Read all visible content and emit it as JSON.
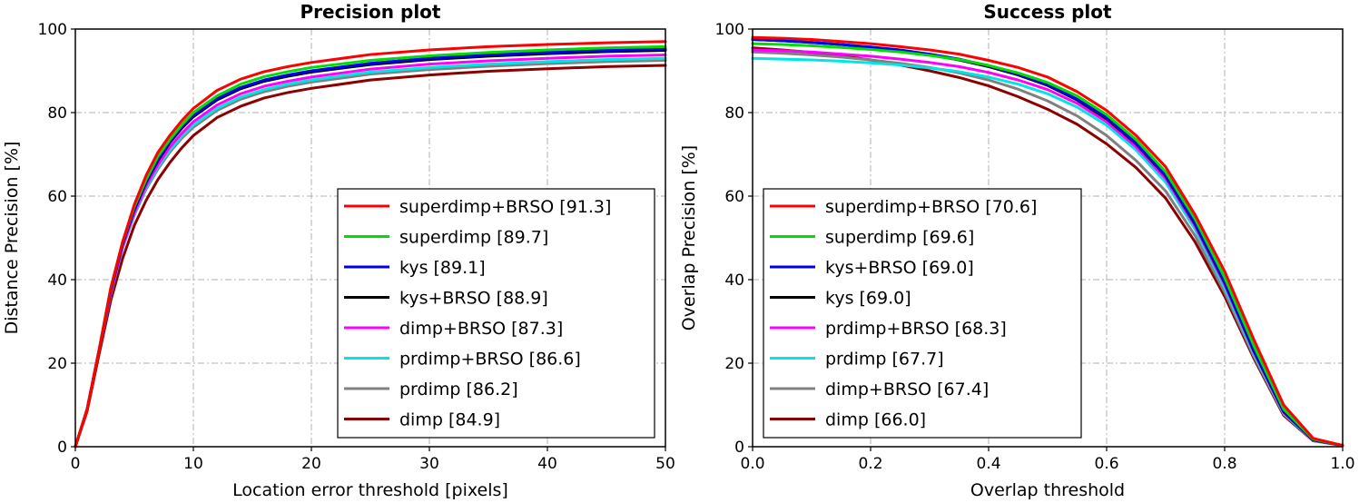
{
  "chart_data": [
    {
      "type": "line",
      "title": "Precision plot",
      "xlabel": "Location error threshold [pixels]",
      "ylabel": "Distance Precision [%]",
      "xlim": [
        0,
        50
      ],
      "ylim": [
        0,
        100
      ],
      "xticks": [
        0,
        10,
        20,
        30,
        40,
        50
      ],
      "xtick_labels": [
        "0",
        "10",
        "20",
        "30",
        "40",
        "50"
      ],
      "yticks": [
        0,
        20,
        40,
        60,
        80,
        100
      ],
      "ytick_labels": [
        "0",
        "20",
        "40",
        "60",
        "80",
        "100"
      ],
      "grid": true,
      "legend_position": "lower-right",
      "x": [
        0,
        1,
        2,
        3,
        4,
        5,
        6,
        7,
        8,
        9,
        10,
        12,
        14,
        16,
        18,
        20,
        25,
        30,
        35,
        40,
        45,
        50
      ],
      "series": [
        {
          "name": "superdimp+BRSO [91.3]",
          "color": "#ff0000",
          "values": [
            0,
            9,
            23,
            38,
            49,
            58,
            65,
            70.5,
            74.5,
            78,
            81,
            85.3,
            88,
            89.8,
            91,
            92,
            93.9,
            95,
            95.8,
            96.3,
            96.7,
            97
          ]
        },
        {
          "name": "superdimp [89.7]",
          "color": "#00dd00",
          "values": [
            0,
            9,
            23,
            38,
            49,
            57.5,
            64,
            69.5,
            73.5,
            77,
            80,
            84,
            86.8,
            88.6,
            89.8,
            90.8,
            92.5,
            93.6,
            94.4,
            95,
            95.5,
            95.8
          ]
        },
        {
          "name": "kys [89.1]",
          "color": "#0000ee",
          "values": [
            0,
            9,
            23,
            37.5,
            48.5,
            57,
            63.5,
            68.8,
            73,
            76.5,
            79.3,
            83.3,
            86,
            87.8,
            89,
            90,
            91.8,
            93,
            93.8,
            94.4,
            94.9,
            95.2
          ]
        },
        {
          "name": "kys+BRSO [88.9]",
          "color": "#000000",
          "values": [
            0,
            9,
            23,
            37.5,
            48.5,
            56.8,
            63.3,
            68.5,
            72.8,
            76.2,
            79,
            83,
            85.7,
            87.5,
            88.7,
            89.7,
            91.5,
            92.7,
            93.5,
            94.1,
            94.6,
            94.9
          ]
        },
        {
          "name": "dimp+BRSO [87.3]",
          "color": "#ff00ff",
          "values": [
            0,
            9,
            23,
            37,
            48,
            56,
            62.5,
            67.5,
            71.7,
            75,
            77.8,
            81.8,
            84.5,
            86.3,
            87.5,
            88.5,
            90.4,
            91.6,
            92.4,
            93,
            93.5,
            93.8
          ]
        },
        {
          "name": "prdimp+BRSO [86.6]",
          "color": "#00e5e5",
          "values": [
            0,
            9,
            23,
            37,
            47.8,
            55.8,
            62,
            67,
            71,
            74.3,
            77,
            81,
            83.7,
            85.5,
            86.8,
            87.8,
            89.7,
            90.8,
            91.6,
            92.2,
            92.7,
            93
          ]
        },
        {
          "name": "prdimp [86.2]",
          "color": "#808080",
          "values": [
            0,
            9,
            23,
            36.5,
            47.5,
            55.5,
            61.7,
            66.5,
            70.5,
            73.8,
            76.5,
            80.5,
            83.2,
            85,
            86.3,
            87.3,
            89.2,
            90.3,
            91.1,
            91.7,
            92.2,
            92.5
          ]
        },
        {
          "name": "dimp [84.9]",
          "color": "#8b0000",
          "values": [
            0,
            8.5,
            22,
            35,
            45,
            53,
            59,
            64,
            68,
            71.5,
            74.5,
            78.8,
            81.5,
            83.5,
            84.8,
            85.8,
            87.8,
            89,
            89.9,
            90.5,
            91,
            91.3
          ]
        }
      ]
    },
    {
      "type": "line",
      "title": "Success plot",
      "xlabel": "Overlap threshold",
      "ylabel": "Overlap Precision [%]",
      "xlim": [
        0,
        1
      ],
      "ylim": [
        0,
        100
      ],
      "xticks": [
        0,
        0.2,
        0.4,
        0.6,
        0.8,
        1.0
      ],
      "xtick_labels": [
        "0.0",
        "0.2",
        "0.4",
        "0.6",
        "0.8",
        "1.0"
      ],
      "yticks": [
        0,
        20,
        40,
        60,
        80,
        100
      ],
      "ytick_labels": [
        "0",
        "20",
        "40",
        "60",
        "80",
        "100"
      ],
      "grid": true,
      "legend_position": "lower-left",
      "x": [
        0,
        0.05,
        0.1,
        0.15,
        0.2,
        0.25,
        0.3,
        0.35,
        0.4,
        0.45,
        0.5,
        0.55,
        0.6,
        0.65,
        0.7,
        0.75,
        0.8,
        0.85,
        0.9,
        0.95,
        1.0
      ],
      "series": [
        {
          "name": "superdimp+BRSO [70.6]",
          "color": "#ff0000",
          "values": [
            98,
            97.8,
            97.5,
            97,
            96.5,
            95.8,
            95,
            94,
            92.5,
            90.8,
            88.5,
            85,
            80.5,
            74.5,
            67,
            55.5,
            42,
            25.5,
            10,
            2,
            0.3
          ]
        },
        {
          "name": "superdimp [69.6]",
          "color": "#00dd00",
          "values": [
            96.5,
            96.3,
            96,
            95.6,
            95.1,
            94.5,
            93.7,
            92.7,
            91.3,
            89.5,
            87.2,
            84,
            79.5,
            73.5,
            65.8,
            54.5,
            40.5,
            24,
            9,
            1.8,
            0.3
          ]
        },
        {
          "name": "kys+BRSO [69.0]",
          "color": "#0000ee",
          "values": [
            97.5,
            97.2,
            96.8,
            96.3,
            95.7,
            95,
            94,
            92.8,
            91.2,
            89.2,
            86.7,
            83.2,
            78.8,
            72.7,
            65,
            53.5,
            39.5,
            23,
            8.5,
            1.7,
            0.3
          ]
        },
        {
          "name": "kys [69.0]",
          "color": "#000000",
          "values": [
            97.5,
            97.2,
            96.8,
            96.3,
            95.6,
            94.8,
            93.8,
            92.6,
            91,
            89,
            86.5,
            83,
            78.5,
            72.5,
            64.8,
            53.3,
            39.3,
            22.8,
            8.4,
            1.6,
            0.3
          ]
        },
        {
          "name": "prdimp+BRSO [68.3]",
          "color": "#ff00ff",
          "values": [
            95,
            94.8,
            94.5,
            94,
            93.5,
            92.8,
            92,
            91,
            89.6,
            87.8,
            85.5,
            82.2,
            77.8,
            71.8,
            64.2,
            52.8,
            38.8,
            22.5,
            8.2,
            1.6,
            0.3
          ]
        },
        {
          "name": "prdimp [67.7]",
          "color": "#00e5e5",
          "values": [
            93,
            92.8,
            92.6,
            92.3,
            91.9,
            91.4,
            90.7,
            89.8,
            88.5,
            86.8,
            84.5,
            81.3,
            77,
            71,
            63.3,
            52,
            38,
            22,
            8,
            1.5,
            0.3
          ]
        },
        {
          "name": "dimp+BRSO [67.4]",
          "color": "#808080",
          "values": [
            94.5,
            94.2,
            93.8,
            93.3,
            92.6,
            91.8,
            90.8,
            89.5,
            87.8,
            85.6,
            82.8,
            79.2,
            74.5,
            68.5,
            61.2,
            50.5,
            37,
            21.5,
            7.8,
            1.5,
            0.3
          ]
        },
        {
          "name": "dimp [66.0]",
          "color": "#8b0000",
          "values": [
            95.5,
            95,
            94.4,
            93.6,
            92.6,
            91.4,
            90,
            88.4,
            86.4,
            83.8,
            80.8,
            77.2,
            72.5,
            66.8,
            59.5,
            49,
            36,
            21,
            7.5,
            1.4,
            0.3
          ]
        }
      ]
    }
  ]
}
